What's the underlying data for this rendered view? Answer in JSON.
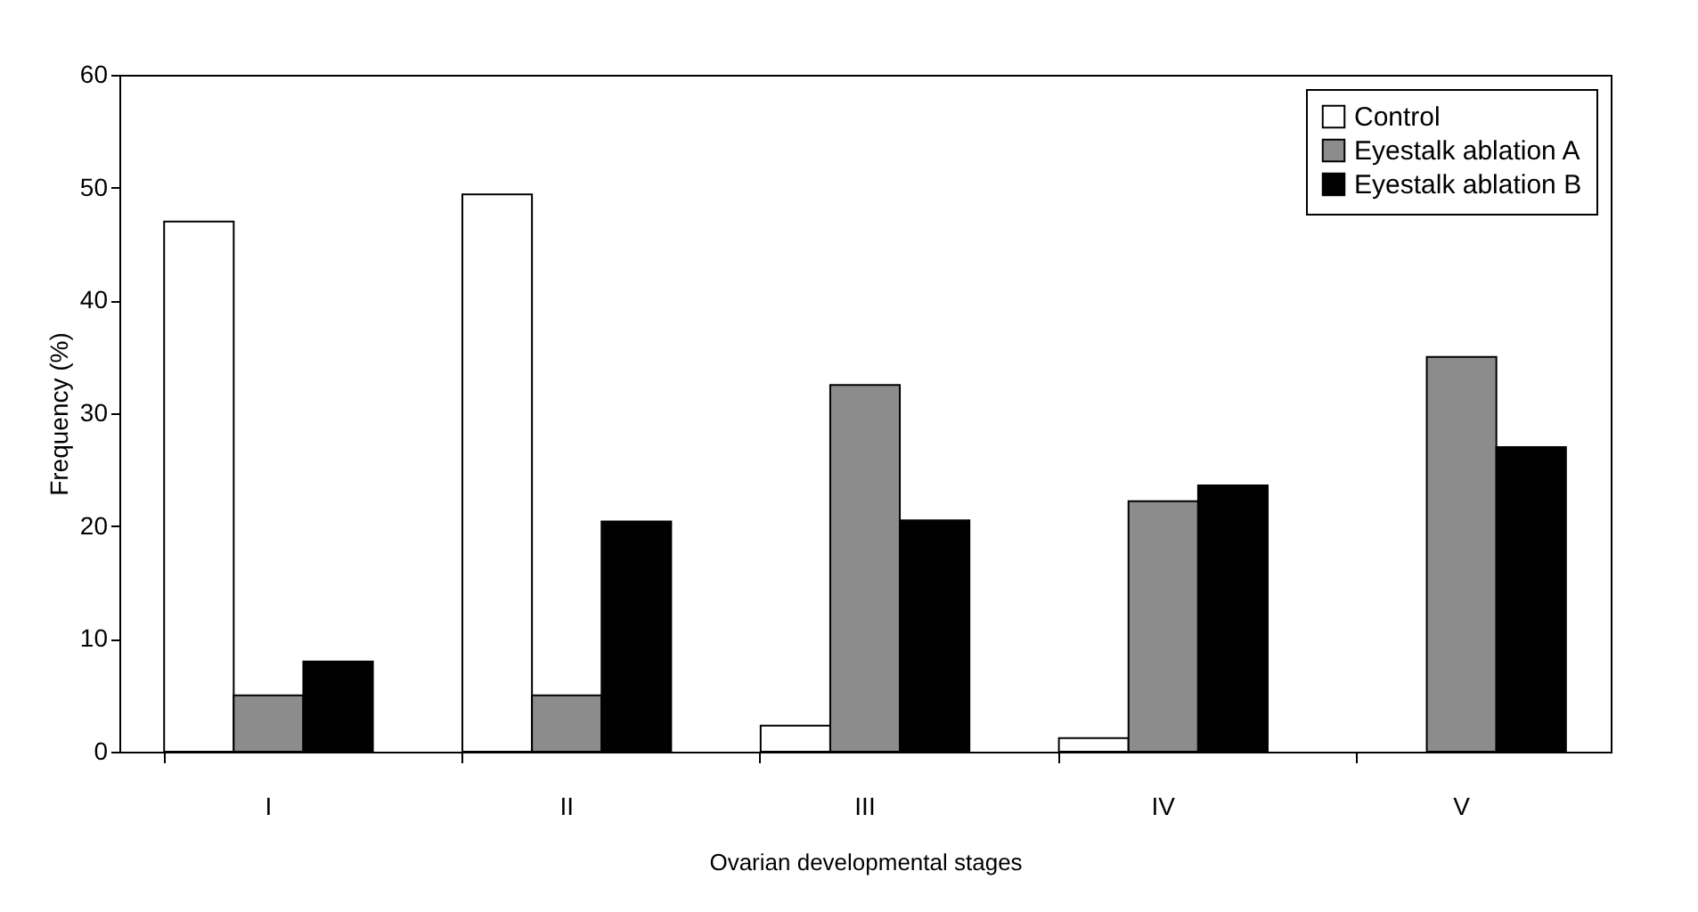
{
  "chart_data": {
    "type": "bar",
    "xlabel": "Ovarian developmental stages",
    "ylabel": "Frequency (%)",
    "categories": [
      "I",
      "II",
      "III",
      "IV",
      "V"
    ],
    "series": [
      {
        "name": "Control",
        "color": "#ffffff",
        "values": [
          47,
          49.4,
          2.3,
          1.2,
          null
        ]
      },
      {
        "name": "Eyestalk ablation A",
        "color": "#8c8c8c",
        "values": [
          5,
          5,
          32.5,
          22.2,
          35
        ]
      },
      {
        "name": "Eyestalk ablation B",
        "color": "#000000",
        "values": [
          8,
          20.4,
          20.5,
          23.6,
          27
        ]
      }
    ],
    "ylim": [
      0,
      60
    ],
    "yticks": [
      0,
      10,
      20,
      30,
      40,
      50,
      60
    ],
    "grid": false,
    "legend": "top right"
  }
}
